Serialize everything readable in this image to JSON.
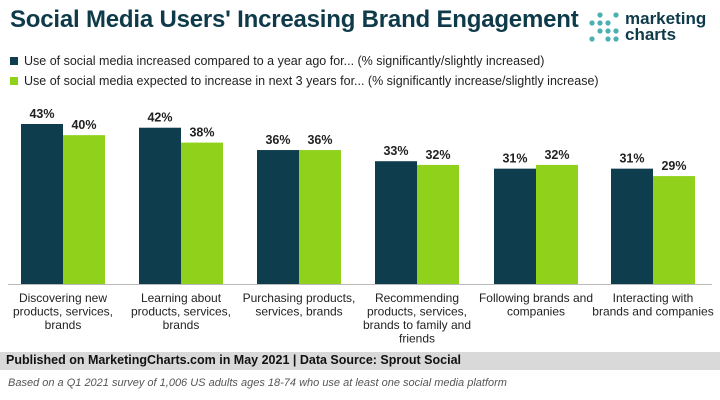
{
  "title": "Social Media Users' Increasing Brand Engagement",
  "logo": {
    "line1": "marketing",
    "line2": "charts"
  },
  "colors": {
    "series1": "#0e3d4d",
    "series2": "#8fd11b",
    "title": "#0e3a4a",
    "logo_dot": "#4ab0b2"
  },
  "footer": {
    "published": "Published on MarketingCharts.com in May 2021 | Data Source: Sprout Social",
    "note": "Based on a Q1 2021 survey of 1,006 US adults ages 18-74 who use at least one social media platform"
  },
  "chart_data": {
    "type": "bar",
    "title": "Social Media Users' Increasing Brand Engagement",
    "categories": [
      "Discovering new products, services, brands",
      "Learning about products, services, brands",
      "Purchasing products, services, brands",
      "Recommending products, services, brands to family and friends",
      "Following brands and companies",
      "Interacting with brands and companies"
    ],
    "category_lines": [
      [
        "Discovering new",
        "products, services,",
        "brands"
      ],
      [
        "Learning about",
        "products, services,",
        "brands"
      ],
      [
        "Purchasing products,",
        "services, brands"
      ],
      [
        "Recommending",
        "products, services,",
        "brands to family and",
        "friends"
      ],
      [
        "Following brands and",
        "companies"
      ],
      [
        "Interacting with",
        "brands and companies"
      ]
    ],
    "series": [
      {
        "name": "Use of social media increased compared to a year ago for... (% significantly/slightly increased)",
        "values": [
          43,
          42,
          36,
          33,
          31,
          31
        ],
        "labels": [
          "43%",
          "42%",
          "36%",
          "33%",
          "31%",
          "31%"
        ]
      },
      {
        "name": "Use of social media expected to increase in next 3 years for... (% significantly increase/slightly increase)",
        "values": [
          40,
          38,
          36,
          32,
          32,
          29
        ],
        "labels": [
          "40%",
          "38%",
          "36%",
          "32%",
          "32%",
          "29%"
        ]
      }
    ],
    "xlabel": "",
    "ylabel": "",
    "ylim": [
      0,
      43
    ],
    "grid": false,
    "legend": "top-left"
  }
}
